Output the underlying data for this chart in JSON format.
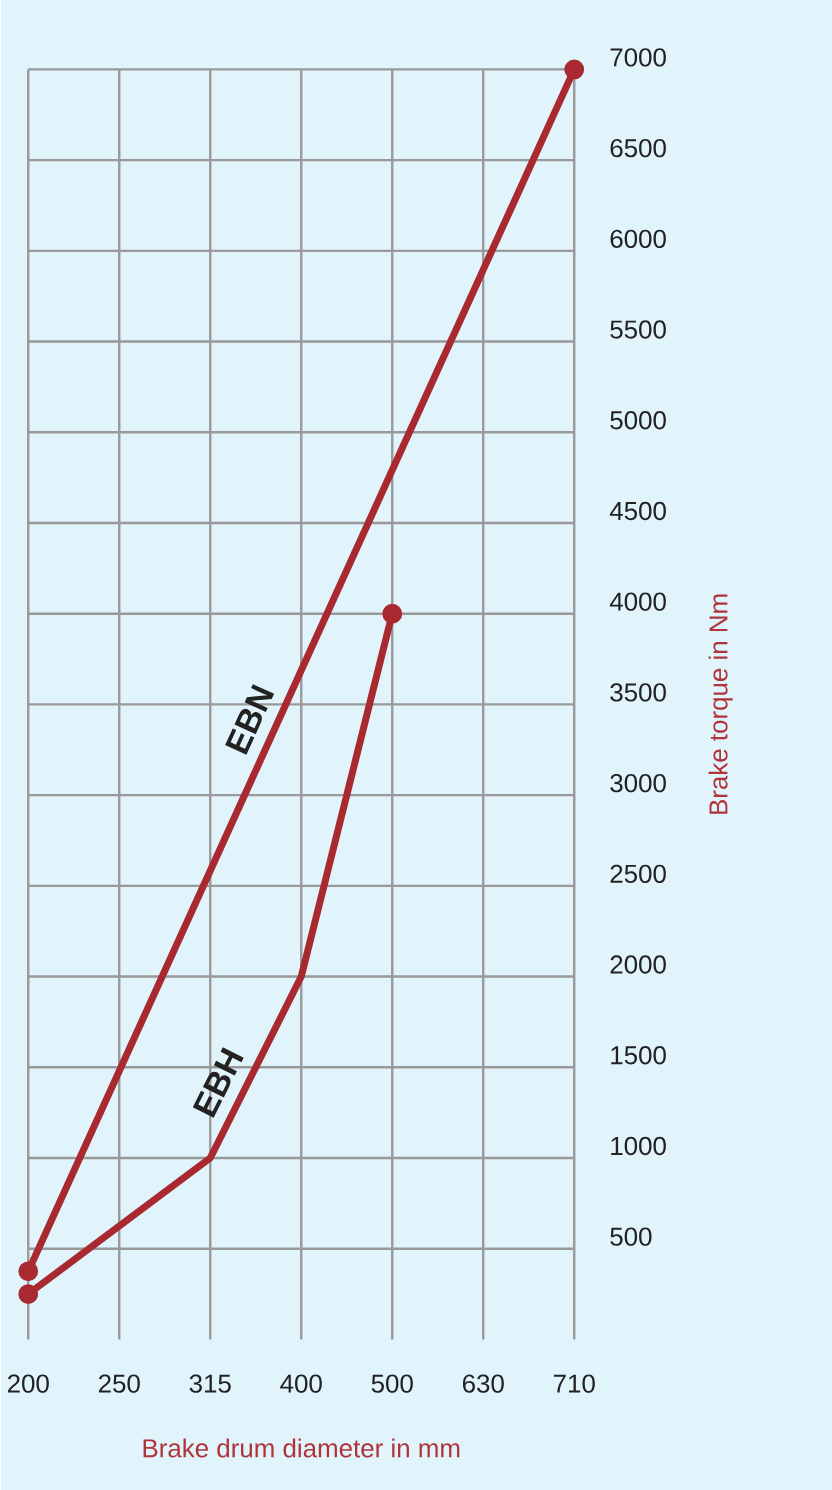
{
  "chart_data": {
    "type": "line",
    "xlabel": "Brake drum diameter in mm",
    "ylabel": "Brake torque in Nm",
    "categories": [
      "200",
      "250",
      "315",
      "400",
      "500",
      "630",
      "710"
    ],
    "series": [
      {
        "name": "EBN",
        "color": "#a82a30",
        "values": [
          375,
          null,
          null,
          null,
          null,
          null,
          7000
        ]
      },
      {
        "name": "EBH",
        "color": "#a82a30",
        "values": [
          250,
          null,
          1000,
          2000,
          4000,
          null,
          null
        ]
      }
    ],
    "ylim": [
      0,
      7000
    ],
    "yticks": [
      500,
      1000,
      1500,
      2000,
      2500,
      3000,
      3500,
      4000,
      4500,
      5000,
      5500,
      6000,
      6500,
      7000
    ],
    "grid": true,
    "marker": "circle",
    "line_style": "solid"
  }
}
